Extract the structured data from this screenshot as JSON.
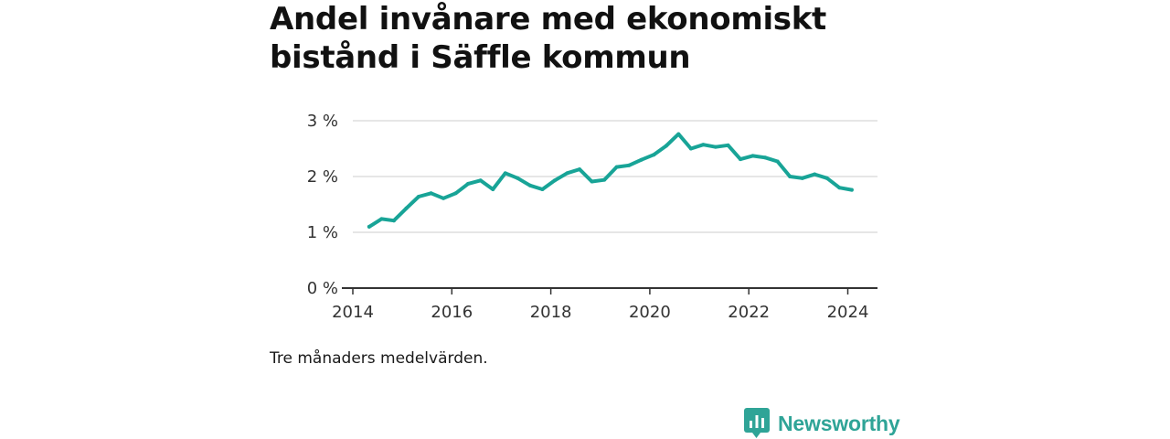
{
  "title": "Andel invånare med ekonomiskt bistånd i Säffle kommun",
  "caption": "Tre månaders medelvärden.",
  "brand": {
    "name": "Newsworthy",
    "icon": "newsworthy-logo-icon",
    "color": "#2fa497"
  },
  "chart_data": {
    "type": "line",
    "title": "Andel invånare med ekonomiskt bistånd i Säffle kommun",
    "xlabel": "",
    "ylabel": "",
    "xlim": [
      2014,
      2024.6
    ],
    "ylim": [
      0,
      3
    ],
    "x_ticks": [
      2014,
      2016,
      2018,
      2020,
      2022,
      2024
    ],
    "x_tick_labels": [
      "2014",
      "2016",
      "2018",
      "2020",
      "2022",
      "2024"
    ],
    "y_ticks": [
      0,
      1,
      2,
      3
    ],
    "y_tick_labels": [
      "0 %",
      "1 %",
      "2 %",
      "3 %"
    ],
    "grid": true,
    "line_color": "#18a497",
    "series": [
      {
        "x": [
          2014.33,
          2014.58,
          2014.83,
          2015.08,
          2015.33,
          2015.58,
          2015.83,
          2016.08,
          2016.33,
          2016.58,
          2016.83,
          2017.08,
          2017.33,
          2017.58,
          2017.83,
          2018.08,
          2018.33,
          2018.58,
          2018.83,
          2019.08,
          2019.33,
          2019.58,
          2019.83,
          2020.08,
          2020.33,
          2020.58,
          2020.83,
          2021.08,
          2021.33,
          2021.58,
          2021.83,
          2022.08,
          2022.33,
          2022.58,
          2022.83,
          2023.08,
          2023.33,
          2023.58,
          2023.83,
          2024.08
        ],
        "values": [
          1.1,
          1.24,
          1.21,
          1.43,
          1.64,
          1.7,
          1.61,
          1.7,
          1.87,
          1.93,
          1.77,
          2.06,
          1.97,
          1.84,
          1.77,
          1.93,
          2.06,
          2.13,
          1.91,
          1.94,
          2.17,
          2.2,
          2.3,
          2.39,
          2.55,
          2.76,
          2.5,
          2.57,
          2.53,
          2.56,
          2.31,
          2.37,
          2.34,
          2.27,
          2.0,
          1.97,
          2.04,
          1.97,
          1.8,
          1.76
        ]
      }
    ]
  }
}
